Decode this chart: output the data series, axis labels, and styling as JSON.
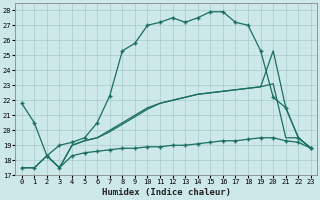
{
  "xlabel": "Humidex (Indice chaleur)",
  "xlim": [
    -0.5,
    23.5
  ],
  "ylim": [
    17,
    28.5
  ],
  "yticks": [
    17,
    18,
    19,
    20,
    21,
    22,
    23,
    24,
    25,
    26,
    27,
    28
  ],
  "xticks": [
    0,
    1,
    2,
    3,
    4,
    5,
    6,
    7,
    8,
    9,
    10,
    11,
    12,
    13,
    14,
    15,
    16,
    17,
    18,
    19,
    20,
    21,
    22,
    23
  ],
  "background_color": "#cde8e8",
  "grid_color": "#aacccc",
  "line_color": "#1a6e62",
  "line1_x": [
    0,
    1,
    2,
    3,
    4,
    5,
    6,
    7,
    8,
    9,
    10,
    11,
    12,
    13,
    14,
    15,
    16,
    17,
    18,
    19,
    20,
    21,
    22,
    23
  ],
  "line1_y": [
    21.8,
    20.5,
    18.3,
    19.0,
    19.2,
    19.5,
    20.5,
    22.3,
    25.3,
    25.8,
    27.0,
    27.2,
    27.5,
    27.2,
    27.5,
    27.9,
    27.9,
    27.2,
    27.0,
    25.3,
    22.2,
    21.5,
    19.5,
    18.8
  ],
  "line2_x": [
    0,
    1,
    2,
    3,
    4,
    5,
    6,
    7,
    8,
    9,
    10,
    11,
    12,
    13,
    14,
    15,
    16,
    17,
    18,
    19,
    20,
    21,
    22,
    23
  ],
  "line2_y": [
    17.5,
    17.5,
    18.3,
    17.5,
    18.3,
    18.5,
    18.6,
    18.7,
    18.8,
    18.8,
    18.9,
    18.9,
    19.0,
    19.0,
    19.1,
    19.2,
    19.3,
    19.3,
    19.4,
    19.5,
    19.5,
    19.3,
    19.2,
    18.8
  ],
  "line3_x": [
    2,
    3,
    4,
    5,
    6,
    7,
    8,
    9,
    10,
    11,
    12,
    13,
    14,
    15,
    16,
    17,
    18,
    19,
    20,
    21,
    22,
    23
  ],
  "line3_y": [
    18.3,
    17.5,
    19.0,
    19.3,
    19.5,
    19.9,
    20.4,
    20.9,
    21.4,
    21.8,
    22.0,
    22.2,
    22.4,
    22.5,
    22.6,
    22.7,
    22.8,
    22.9,
    23.1,
    19.5,
    19.5,
    18.8
  ],
  "line4_x": [
    0,
    1,
    2,
    3,
    4,
    5,
    6,
    7,
    8,
    9,
    10,
    11,
    12,
    13,
    14,
    15,
    16,
    17,
    18,
    19,
    20,
    21,
    22,
    23
  ],
  "line4_y": [
    17.5,
    17.5,
    18.3,
    17.5,
    19.0,
    19.3,
    19.5,
    20.0,
    20.5,
    21.0,
    21.5,
    21.8,
    22.0,
    22.2,
    22.4,
    22.5,
    22.6,
    22.7,
    22.8,
    22.9,
    25.3,
    21.5,
    19.5,
    18.8
  ],
  "marker": "+",
  "markersize": 3.5,
  "linewidth": 0.9
}
